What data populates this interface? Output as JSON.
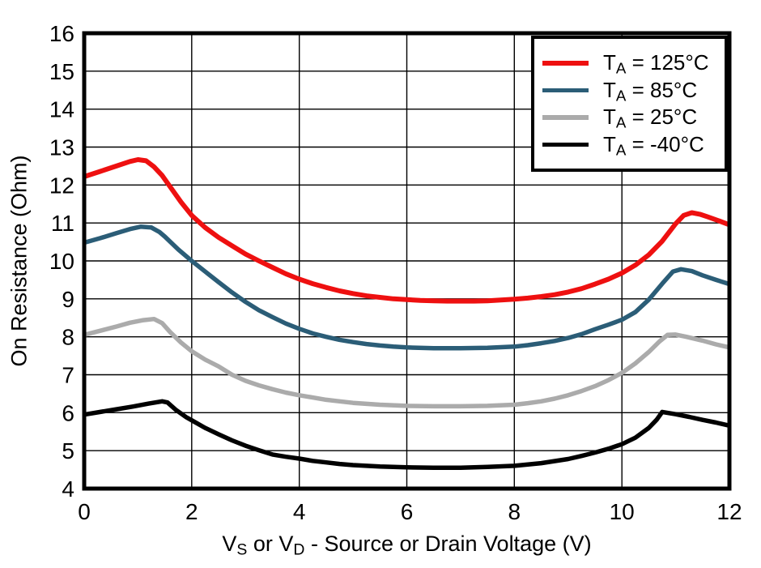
{
  "chart_data": {
    "type": "line",
    "title": "",
    "ylabel": "On Resistance (Ohm)",
    "xlabel_parts": [
      {
        "text": "V"
      },
      {
        "sub": "S"
      },
      {
        "text": " or V"
      },
      {
        "sub": "D"
      },
      {
        "text": " - Source or Drain Voltage (V)"
      }
    ],
    "xlim": [
      0,
      12
    ],
    "ylim": [
      4,
      16
    ],
    "xticks": [
      0,
      2,
      4,
      6,
      8,
      10,
      12
    ],
    "yticks": [
      4,
      5,
      6,
      7,
      8,
      9,
      10,
      11,
      12,
      13,
      14,
      15,
      16
    ],
    "grid": true,
    "frame_color": "#000000",
    "legend": {
      "position": "top-right",
      "items": [
        {
          "prefix": "T",
          "sub": "A",
          "rest": " = 125°C"
        },
        {
          "prefix": "T",
          "sub": "A",
          "rest": " = 85°C"
        },
        {
          "prefix": "T",
          "sub": "A",
          "rest": " = 25°C"
        },
        {
          "prefix": "T",
          "sub": "A",
          "rest": " = -40°C"
        }
      ]
    },
    "series": [
      {
        "name": "TA = 125°C",
        "slug": "ta-125c",
        "color": "#ee1010",
        "width": 6,
        "points": [
          [
            0,
            12.22
          ],
          [
            0.3,
            12.36
          ],
          [
            0.6,
            12.5
          ],
          [
            0.85,
            12.62
          ],
          [
            1.0,
            12.67
          ],
          [
            1.15,
            12.64
          ],
          [
            1.3,
            12.48
          ],
          [
            1.45,
            12.25
          ],
          [
            1.6,
            11.95
          ],
          [
            1.8,
            11.55
          ],
          [
            2.0,
            11.2
          ],
          [
            2.25,
            10.88
          ],
          [
            2.5,
            10.62
          ],
          [
            2.75,
            10.4
          ],
          [
            3.0,
            10.18
          ],
          [
            3.25,
            10.0
          ],
          [
            3.5,
            9.83
          ],
          [
            3.75,
            9.66
          ],
          [
            4.0,
            9.52
          ],
          [
            4.25,
            9.4
          ],
          [
            4.5,
            9.3
          ],
          [
            4.75,
            9.21
          ],
          [
            5.0,
            9.14
          ],
          [
            5.25,
            9.08
          ],
          [
            5.5,
            9.04
          ],
          [
            5.75,
            9.0
          ],
          [
            6.0,
            8.98
          ],
          [
            6.25,
            8.96
          ],
          [
            6.5,
            8.95
          ],
          [
            6.75,
            8.94
          ],
          [
            7.0,
            8.94
          ],
          [
            7.25,
            8.94
          ],
          [
            7.5,
            8.95
          ],
          [
            7.75,
            8.97
          ],
          [
            8.0,
            8.99
          ],
          [
            8.25,
            9.02
          ],
          [
            8.5,
            9.06
          ],
          [
            8.75,
            9.11
          ],
          [
            9.0,
            9.18
          ],
          [
            9.25,
            9.27
          ],
          [
            9.5,
            9.39
          ],
          [
            9.75,
            9.52
          ],
          [
            10.0,
            9.68
          ],
          [
            10.25,
            9.89
          ],
          [
            10.5,
            10.16
          ],
          [
            10.75,
            10.52
          ],
          [
            11.0,
            10.98
          ],
          [
            11.15,
            11.2
          ],
          [
            11.3,
            11.27
          ],
          [
            11.45,
            11.23
          ],
          [
            11.6,
            11.16
          ],
          [
            11.8,
            11.06
          ],
          [
            12.0,
            10.95
          ]
        ]
      },
      {
        "name": "TA = 85°C",
        "slug": "ta-85c",
        "color": "#2b5d77",
        "width": 5.5,
        "points": [
          [
            0,
            10.48
          ],
          [
            0.3,
            10.6
          ],
          [
            0.6,
            10.73
          ],
          [
            0.85,
            10.84
          ],
          [
            1.05,
            10.9
          ],
          [
            1.25,
            10.88
          ],
          [
            1.4,
            10.76
          ],
          [
            1.5,
            10.64
          ],
          [
            1.75,
            10.3
          ],
          [
            2.0,
            10.0
          ],
          [
            2.25,
            9.72
          ],
          [
            2.5,
            9.44
          ],
          [
            2.75,
            9.17
          ],
          [
            3.0,
            8.92
          ],
          [
            3.25,
            8.7
          ],
          [
            3.5,
            8.52
          ],
          [
            3.75,
            8.35
          ],
          [
            4.0,
            8.21
          ],
          [
            4.25,
            8.09
          ],
          [
            4.5,
            8.0
          ],
          [
            4.75,
            7.92
          ],
          [
            5.0,
            7.86
          ],
          [
            5.25,
            7.81
          ],
          [
            5.5,
            7.77
          ],
          [
            5.75,
            7.74
          ],
          [
            6.0,
            7.72
          ],
          [
            6.5,
            7.7
          ],
          [
            7.0,
            7.7
          ],
          [
            7.5,
            7.71
          ],
          [
            8.0,
            7.74
          ],
          [
            8.25,
            7.78
          ],
          [
            8.5,
            7.83
          ],
          [
            8.75,
            7.89
          ],
          [
            9.0,
            7.97
          ],
          [
            9.25,
            8.07
          ],
          [
            9.5,
            8.2
          ],
          [
            9.75,
            8.32
          ],
          [
            10.0,
            8.45
          ],
          [
            10.25,
            8.65
          ],
          [
            10.5,
            8.98
          ],
          [
            10.75,
            9.4
          ],
          [
            10.95,
            9.72
          ],
          [
            11.1,
            9.78
          ],
          [
            11.3,
            9.73
          ],
          [
            11.5,
            9.62
          ],
          [
            11.75,
            9.5
          ],
          [
            12.0,
            9.39
          ]
        ]
      },
      {
        "name": "TA = 25°C",
        "slug": "ta-25c",
        "color": "#ababab",
        "width": 5.5,
        "points": [
          [
            0,
            8.05
          ],
          [
            0.3,
            8.16
          ],
          [
            0.6,
            8.27
          ],
          [
            0.85,
            8.37
          ],
          [
            1.1,
            8.44
          ],
          [
            1.3,
            8.47
          ],
          [
            1.45,
            8.36
          ],
          [
            1.6,
            8.12
          ],
          [
            1.8,
            7.85
          ],
          [
            2.0,
            7.62
          ],
          [
            2.25,
            7.4
          ],
          [
            2.5,
            7.22
          ],
          [
            2.75,
            7.0
          ],
          [
            3.0,
            6.84
          ],
          [
            3.25,
            6.72
          ],
          [
            3.5,
            6.62
          ],
          [
            3.75,
            6.53
          ],
          [
            4.0,
            6.46
          ],
          [
            4.25,
            6.4
          ],
          [
            4.5,
            6.34
          ],
          [
            4.75,
            6.3
          ],
          [
            5.0,
            6.26
          ],
          [
            5.5,
            6.21
          ],
          [
            6.0,
            6.18
          ],
          [
            6.5,
            6.17
          ],
          [
            7.0,
            6.17
          ],
          [
            7.5,
            6.18
          ],
          [
            8.0,
            6.21
          ],
          [
            8.25,
            6.25
          ],
          [
            8.5,
            6.3
          ],
          [
            8.75,
            6.37
          ],
          [
            9.0,
            6.46
          ],
          [
            9.25,
            6.57
          ],
          [
            9.5,
            6.7
          ],
          [
            9.75,
            6.86
          ],
          [
            10.0,
            7.05
          ],
          [
            10.25,
            7.3
          ],
          [
            10.5,
            7.6
          ],
          [
            10.7,
            7.88
          ],
          [
            10.85,
            8.05
          ],
          [
            11.0,
            8.06
          ],
          [
            11.2,
            8.0
          ],
          [
            11.5,
            7.9
          ],
          [
            11.75,
            7.8
          ],
          [
            12.0,
            7.72
          ]
        ]
      },
      {
        "name": "TA = -40°C",
        "slug": "ta-n40c",
        "color": "#000000",
        "width": 5.5,
        "points": [
          [
            0,
            5.95
          ],
          [
            0.3,
            6.02
          ],
          [
            0.6,
            6.09
          ],
          [
            0.9,
            6.16
          ],
          [
            1.2,
            6.24
          ],
          [
            1.45,
            6.3
          ],
          [
            1.55,
            6.27
          ],
          [
            1.7,
            6.08
          ],
          [
            1.9,
            5.88
          ],
          [
            2.0,
            5.8
          ],
          [
            2.25,
            5.6
          ],
          [
            2.5,
            5.43
          ],
          [
            2.75,
            5.27
          ],
          [
            3.0,
            5.13
          ],
          [
            3.25,
            5.01
          ],
          [
            3.5,
            4.9
          ],
          [
            3.75,
            4.84
          ],
          [
            4.0,
            4.79
          ],
          [
            4.25,
            4.73
          ],
          [
            4.5,
            4.69
          ],
          [
            4.75,
            4.65
          ],
          [
            5.0,
            4.62
          ],
          [
            5.5,
            4.58
          ],
          [
            6.0,
            4.56
          ],
          [
            6.5,
            4.55
          ],
          [
            7.0,
            4.55
          ],
          [
            7.5,
            4.57
          ],
          [
            8.0,
            4.6
          ],
          [
            8.5,
            4.67
          ],
          [
            9.0,
            4.78
          ],
          [
            9.25,
            4.86
          ],
          [
            9.5,
            4.95
          ],
          [
            9.75,
            5.05
          ],
          [
            10.0,
            5.17
          ],
          [
            10.25,
            5.34
          ],
          [
            10.5,
            5.6
          ],
          [
            10.65,
            5.82
          ],
          [
            10.75,
            6.02
          ],
          [
            11.0,
            5.96
          ],
          [
            11.25,
            5.89
          ],
          [
            11.5,
            5.81
          ],
          [
            11.75,
            5.74
          ],
          [
            12.0,
            5.66
          ]
        ]
      }
    ]
  }
}
